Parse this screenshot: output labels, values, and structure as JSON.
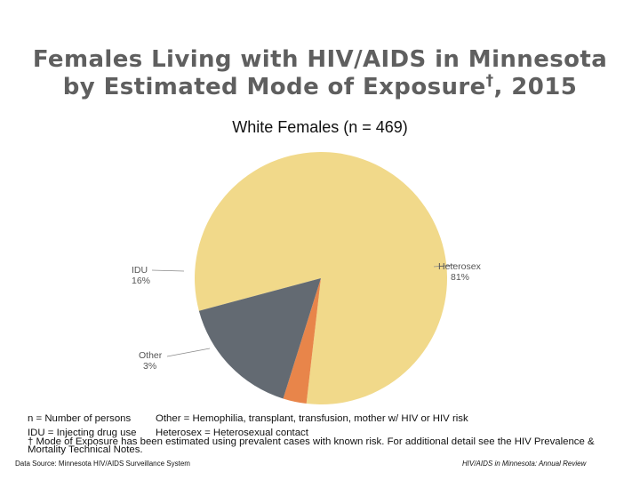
{
  "title_line1": "Females Living with HIV/AIDS in Minnesota",
  "title_line2": "by Estimated Mode of Exposure",
  "title_dagger": "†",
  "title_year": ", 2015",
  "chart_data": {
    "type": "pie",
    "title": "White Females (n = 469)",
    "slices": [
      {
        "label": "Heterosex",
        "value": 81,
        "value_label": "81%",
        "color": "#f1d98a"
      },
      {
        "label": "Other",
        "value": 3,
        "value_label": "3%",
        "color": "#e8854a"
      },
      {
        "label": "IDU",
        "value": 16,
        "value_label": "16%",
        "color": "#636a72"
      }
    ]
  },
  "notes": {
    "n_def": "n = Number of persons",
    "other_def": "Other = Hemophilia, transplant, transfusion, mother w/ HIV or HIV risk",
    "idu_def": "IDU = Injecting drug use",
    "hetero_def": "Heterosex = Heterosexual contact",
    "dagger_def": "† Mode of Exposure has been estimated using prevalent cases with known risk. For additional detail see the HIV Prevalence & Mortality Technical Notes."
  },
  "footer": {
    "source": "Data Source: Minnesota HIV/AIDS Surveillance System",
    "report": "HIV/AIDS in Minnesota: Annual Review"
  }
}
